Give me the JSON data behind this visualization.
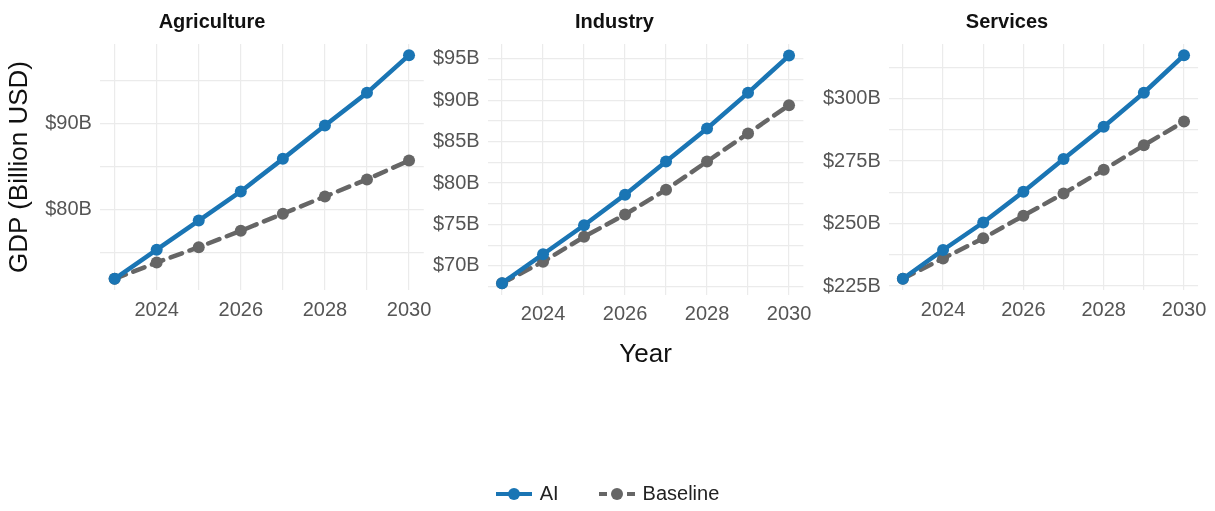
{
  "chart_data": [
    {
      "type": "line",
      "title": "Agriculture",
      "ylabel": "GDP (Billion USD)",
      "legend": "bottom",
      "x": [
        2023,
        2024,
        2025,
        2026,
        2027,
        2028,
        2029,
        2030
      ],
      "xlim": [
        2022.65,
        2030.35
      ],
      "xticks": [
        {
          "value": 2023,
          "label": null
        },
        2024,
        {
          "value": 2025,
          "label": null
        },
        2026,
        {
          "value": 2027,
          "label": null
        },
        2028,
        {
          "value": 2029,
          "label": null
        },
        2030
      ],
      "ylim": [
        70.6,
        99.3
      ],
      "yticks": [
        {
          "value": 75,
          "label": null
        },
        {
          "value": 80,
          "label": "$80B"
        },
        {
          "value": 85,
          "label": null
        },
        {
          "value": 90,
          "label": "$90B"
        },
        {
          "value": 95,
          "label": null
        }
      ],
      "grid": true,
      "marker": "circle",
      "series": [
        {
          "name": "AI",
          "color": "#1a75b4",
          "line_style": "solid",
          "values": [
            71.9,
            75.3,
            78.7,
            82.1,
            85.9,
            89.8,
            93.6,
            98.0
          ]
        },
        {
          "name": "Baseline",
          "color": "#666666",
          "line_style": "dashed",
          "values": [
            71.9,
            73.8,
            75.6,
            77.5,
            79.5,
            81.5,
            83.5,
            85.7
          ]
        }
      ]
    },
    {
      "type": "line",
      "title": "Industry",
      "xlabel": "Year",
      "x": [
        2023,
        2024,
        2025,
        2026,
        2027,
        2028,
        2029,
        2030
      ],
      "xlim": [
        2022.65,
        2030.35
      ],
      "xticks": [
        {
          "value": 2023,
          "label": null
        },
        2024,
        {
          "value": 2025,
          "label": null
        },
        2026,
        {
          "value": 2027,
          "label": null
        },
        2028,
        {
          "value": 2029,
          "label": null
        },
        2030
      ],
      "ylim": [
        66.5,
        96.8
      ],
      "yticks": [
        {
          "value": 67.5,
          "label": null
        },
        {
          "value": 70,
          "label": "$70B"
        },
        {
          "value": 72.5,
          "label": null
        },
        {
          "value": 75,
          "label": "$75B"
        },
        {
          "value": 77.5,
          "label": null
        },
        {
          "value": 80,
          "label": "$80B"
        },
        {
          "value": 82.5,
          "label": null
        },
        {
          "value": 85,
          "label": "$85B"
        },
        {
          "value": 87.5,
          "label": null
        },
        {
          "value": 90,
          "label": "$90B"
        },
        {
          "value": 92.5,
          "label": null
        },
        {
          "value": 95,
          "label": "$95B"
        }
      ],
      "grid": true,
      "marker": "circle",
      "series": [
        {
          "color": "#1a75b4",
          "line_style": "solid",
          "values": [
            67.9,
            71.4,
            74.9,
            78.6,
            82.6,
            86.6,
            90.9,
            95.4
          ]
        },
        {
          "color": "#666666",
          "line_style": "dashed",
          "values": [
            67.9,
            70.5,
            73.5,
            76.2,
            79.2,
            82.6,
            86.0,
            89.4
          ]
        }
      ]
    },
    {
      "type": "line",
      "title": "Services",
      "x": [
        2023,
        2024,
        2025,
        2026,
        2027,
        2028,
        2029,
        2030
      ],
      "xlim": [
        2022.65,
        2030.35
      ],
      "xticks": [
        {
          "value": 2023,
          "label": null
        },
        2024,
        {
          "value": 2025,
          "label": null
        },
        2026,
        {
          "value": 2027,
          "label": null
        },
        2028,
        {
          "value": 2029,
          "label": null
        },
        2030
      ],
      "ylim": [
        223.4,
        321.8
      ],
      "yticks": [
        {
          "value": 225,
          "label": "$225B"
        },
        {
          "value": 237.5,
          "label": null
        },
        {
          "value": 250,
          "label": "$250B"
        },
        {
          "value": 262.5,
          "label": null
        },
        {
          "value": 275,
          "label": "$275B"
        },
        {
          "value": 287.5,
          "label": null
        },
        {
          "value": 300,
          "label": "$300B"
        },
        {
          "value": 312.5,
          "label": null
        }
      ],
      "grid": true,
      "marker": "circle",
      "series": [
        {
          "color": "#1a75b4",
          "line_style": "solid",
          "values": [
            227.9,
            239.4,
            250.4,
            262.7,
            275.8,
            288.7,
            302.3,
            317.3
          ]
        },
        {
          "color": "#666666",
          "line_style": "dashed",
          "values": [
            227.9,
            236.0,
            244.1,
            253.1,
            262.0,
            271.5,
            281.3,
            290.8
          ]
        }
      ]
    }
  ]
}
